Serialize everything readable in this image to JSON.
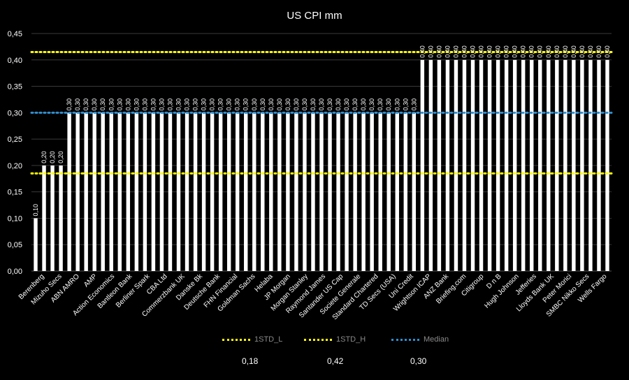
{
  "chart_data": {
    "type": "bar",
    "title": "US CPI mm",
    "ylim": [
      0,
      0.45
    ],
    "yticks": [
      "0,00",
      "0,05",
      "0,10",
      "0,15",
      "0,20",
      "0,25",
      "0,30",
      "0,35",
      "0,40",
      "0,45"
    ],
    "ytick_values": [
      0,
      0.05,
      0.1,
      0.15,
      0.2,
      0.25,
      0.3,
      0.35,
      0.4,
      0.45
    ],
    "x_tick_labels": [
      "Berenberg",
      "Mizuho Secs",
      "ABN AMRO",
      "AMP",
      "Action Economics",
      "Bantleon Bank",
      "Berliner Spark",
      "CBA Ltd",
      "Commerzbank UK",
      "Danske Bk",
      "Deutsche Bank",
      "FHN Financial",
      "Goldman Sachs",
      "Helaba",
      "JP Morgan",
      "Morgan Stanley",
      "Raymond James",
      "Santander US Cap",
      "Societe Generale",
      "Standard Chartered",
      "TD Secs (USA)",
      "Uni Credit",
      "Wrightson ICAP",
      "ANZ Bank",
      "Briefing.com",
      "Citigroup",
      "D n B",
      "Hugh Johnson",
      "Jefferies",
      "Lloyds Bank UK",
      "Peter Morici",
      "SMBC Nikko Secs",
      "Wells Fargo"
    ],
    "values": [
      0.1,
      0.2,
      0.2,
      0.2,
      0.3,
      0.3,
      0.3,
      0.3,
      0.3,
      0.3,
      0.3,
      0.3,
      0.3,
      0.3,
      0.3,
      0.3,
      0.3,
      0.3,
      0.3,
      0.3,
      0.3,
      0.3,
      0.3,
      0.3,
      0.3,
      0.3,
      0.3,
      0.3,
      0.3,
      0.3,
      0.3,
      0.3,
      0.3,
      0.3,
      0.3,
      0.3,
      0.3,
      0.3,
      0.3,
      0.3,
      0.3,
      0.3,
      0.3,
      0.3,
      0.3,
      0.3,
      0.4,
      0.4,
      0.4,
      0.4,
      0.4,
      0.4,
      0.4,
      0.4,
      0.4,
      0.4,
      0.4,
      0.4,
      0.4,
      0.4,
      0.4,
      0.4,
      0.4,
      0.4,
      0.4,
      0.4,
      0.4,
      0.4,
      0.4
    ],
    "data_labels": [
      "0,10",
      "0,20",
      "0,20",
      "0,20",
      "0,30",
      "0,30",
      "0,30",
      "0,30",
      "0,30",
      "0,30",
      "0,30",
      "0,30",
      "0,30",
      "0,30",
      "0,30",
      "0,30",
      "0,30",
      "0,30",
      "0,30",
      "0,30",
      "0,30",
      "0,30",
      "0,30",
      "0,30",
      "0,30",
      "0,30",
      "0,30",
      "0,30",
      "0,30",
      "0,30",
      "0,30",
      "0,30",
      "0,30",
      "0,30",
      "0,30",
      "0,30",
      "0,30",
      "0,30",
      "0,30",
      "0,30",
      "0,30",
      "0,30",
      "0,30",
      "0,30",
      "0,30",
      "0,30",
      "0,40",
      "0,40",
      "0,40",
      "0,40",
      "0,40",
      "0,40",
      "0,40",
      "0,40",
      "0,40",
      "0,40",
      "0,40",
      "0,40",
      "0,40",
      "0,40",
      "0,40",
      "0,40",
      "0,40",
      "0,40",
      "0,40",
      "0,40",
      "0,40",
      "0,40",
      "0,40"
    ],
    "reference_lines": [
      {
        "name": "1STD_L",
        "value": 0.185,
        "label": "0,18",
        "color": "#ffff00"
      },
      {
        "name": "1STD_H",
        "value": 0.415,
        "label": "0,42",
        "color": "#ffff00"
      },
      {
        "name": "Median",
        "value": 0.3,
        "label": "0,30",
        "color": "#2e8fd0"
      }
    ],
    "bar_color": "#ffffff",
    "grid": true,
    "legend_position": "bottom"
  }
}
